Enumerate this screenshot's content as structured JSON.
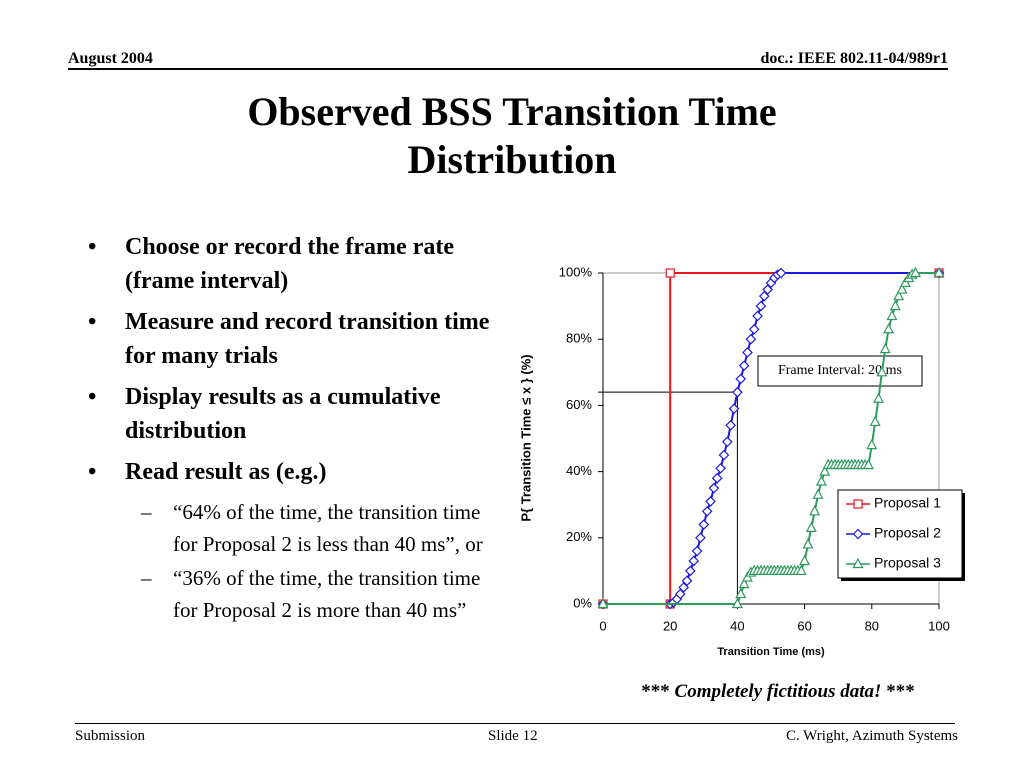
{
  "header": {
    "date": "August 2004",
    "doc": "doc.: IEEE 802.11-04/989r1"
  },
  "title": "Observed BSS Transition Time Distribution",
  "bullets": [
    {
      "text": "Choose or record the frame rate (frame interval)"
    },
    {
      "text": "Measure and record transition time for many trials"
    },
    {
      "text": "Display results as a cumulative distribution"
    },
    {
      "text": "Read result as (e.g.)",
      "sub": [
        "“64% of the time, the transition time for Proposal 2 is less than 40 ms”, or",
        "“36% of the time, the transition time for Proposal 2 is more than 40 ms”"
      ]
    }
  ],
  "chart_data": {
    "type": "line",
    "x_label": "Transition Time (ms)",
    "y_label": "P{ Transition Time ≤ x } (%)",
    "annotation": "Frame Interval: 20 ms",
    "crosshair": {
      "x": 40,
      "y": 64
    },
    "xlim": [
      0,
      100
    ],
    "xticks": [
      0,
      20,
      40,
      60,
      80,
      100
    ],
    "ylim": [
      0,
      100
    ],
    "yticks": [
      {
        "value": 0,
        "label": "0%"
      },
      {
        "value": 20,
        "label": "20%"
      },
      {
        "value": 40,
        "label": "40%"
      },
      {
        "value": 60,
        "label": "60%"
      },
      {
        "value": 80,
        "label": "80%"
      },
      {
        "value": 100,
        "label": "100%"
      }
    ],
    "legend": "right",
    "series": [
      {
        "name": "Proposal 1",
        "color": "#e8161f",
        "marker": "square",
        "x": [
          0,
          20,
          20,
          100
        ],
        "values": [
          0,
          0,
          100,
          100
        ]
      },
      {
        "name": "Proposal 2",
        "color": "#1a1adc",
        "marker": "diamond",
        "x": [
          0,
          20,
          21,
          22,
          23,
          24,
          25,
          26,
          27,
          28,
          29,
          30,
          31,
          32,
          33,
          34,
          35,
          36,
          37,
          38,
          39,
          40,
          41,
          42,
          43,
          44,
          45,
          46,
          47,
          48,
          49,
          50,
          51,
          52,
          53,
          100
        ],
        "values": [
          0,
          0,
          0.5,
          1.5,
          3,
          5,
          7,
          10,
          13,
          16,
          20,
          24,
          28,
          31,
          35,
          38,
          41,
          45,
          49,
          54,
          59,
          64,
          68,
          72,
          76,
          80,
          83,
          87,
          90,
          93,
          95,
          97,
          98.5,
          99.5,
          100,
          100
        ]
      },
      {
        "name": "Proposal 3",
        "color": "#2e9a5c",
        "marker": "triangle",
        "x": [
          0,
          40,
          41,
          42,
          43,
          44,
          45,
          46,
          47,
          48,
          49,
          50,
          51,
          52,
          53,
          54,
          55,
          56,
          57,
          58,
          59,
          60,
          61,
          62,
          63,
          64,
          65,
          66,
          67,
          68,
          69,
          70,
          71,
          72,
          73,
          74,
          75,
          76,
          77,
          78,
          79,
          80,
          81,
          82,
          83,
          84,
          85,
          86,
          87,
          88,
          89,
          90,
          91,
          92,
          93,
          100
        ],
        "values": [
          0,
          0,
          3,
          6,
          8,
          9.5,
          10,
          10,
          10,
          10,
          10,
          10,
          10,
          10,
          10,
          10,
          10,
          10,
          10,
          10,
          10,
          13,
          18,
          23,
          28,
          33,
          37,
          40,
          42,
          42,
          42,
          42,
          42,
          42,
          42,
          42,
          42,
          42,
          42,
          42,
          42,
          48,
          55,
          62,
          70,
          77,
          83,
          87,
          90,
          93,
          95,
          97,
          98.5,
          99.5,
          100,
          100
        ]
      }
    ]
  },
  "footnote": [
    "***",
    "Completely fictitious data!",
    "***"
  ],
  "footer": {
    "left": "Submission",
    "center": "Slide 12",
    "right": "C. Wright, Azimuth Systems"
  }
}
